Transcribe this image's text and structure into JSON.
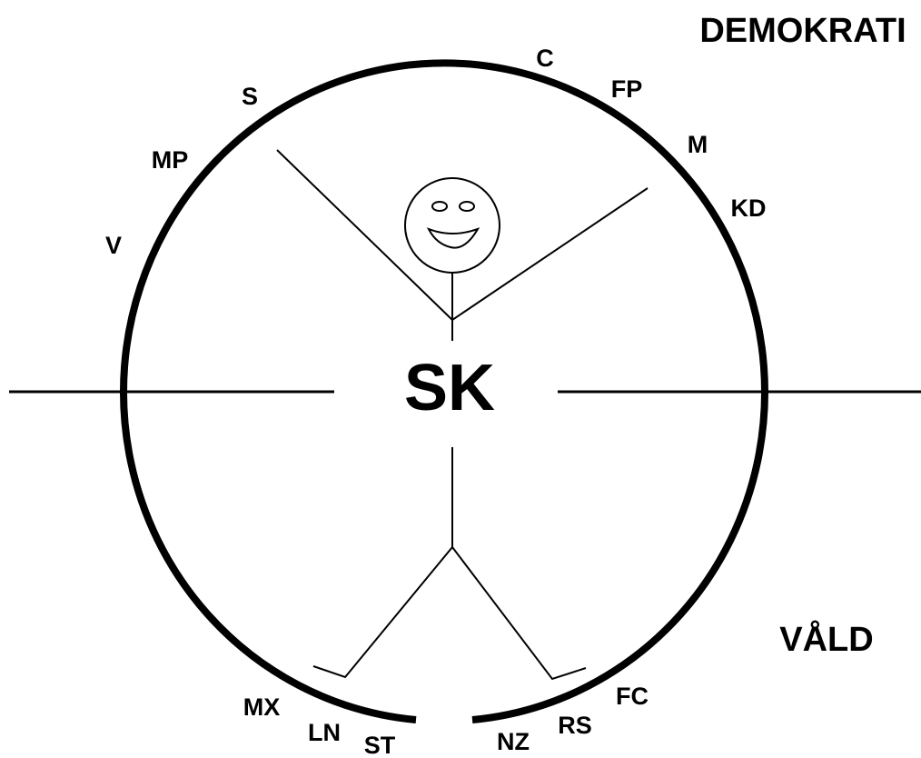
{
  "corner_labels": {
    "top": "DEMOKRATI",
    "bottom": "VÅLD"
  },
  "center": "SK",
  "parties": [
    "C",
    "FP",
    "M",
    "KD",
    "S",
    "MP",
    "V",
    "MX",
    "LN",
    "ST",
    "NZ",
    "RS",
    "FC"
  ]
}
